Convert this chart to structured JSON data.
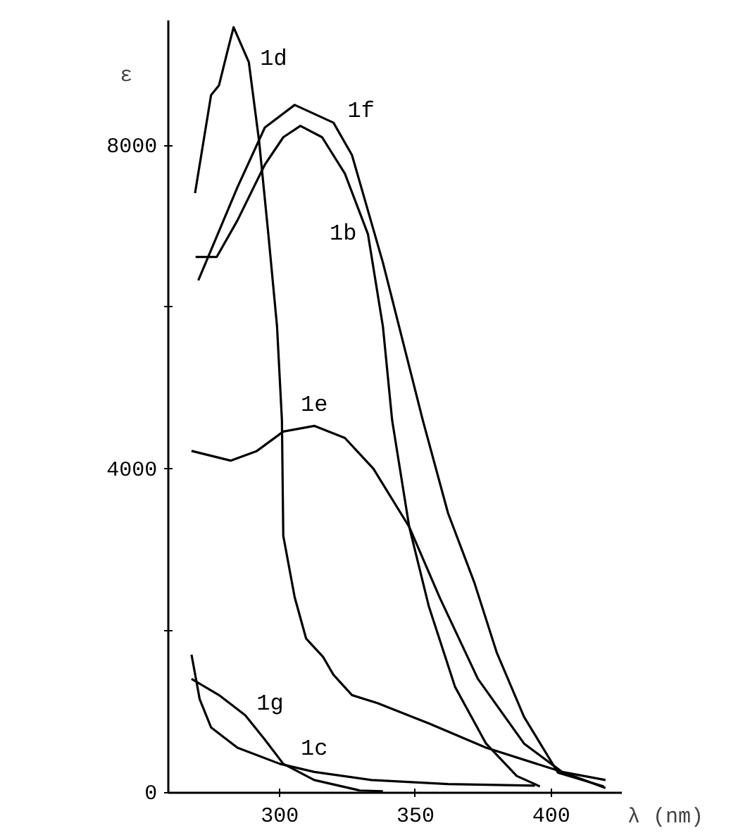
{
  "chart_data": {
    "type": "line",
    "xlabel": "λ (nm)",
    "ylabel": "ε",
    "xlim": [
      259,
      426
    ],
    "ylim": [
      0,
      9550
    ],
    "xticks": [
      300,
      350,
      400
    ],
    "yticks": [
      0,
      {
        "value": 2000,
        "label": null
      },
      4000,
      {
        "value": 6000,
        "label": null
      },
      8000
    ],
    "grid": false,
    "legend": false,
    "marker": "none",
    "line_style": "solid",
    "series": [
      {
        "name": "1b",
        "color": "#000000",
        "x": [
          269,
          276.8,
          284.4,
          294.5,
          301.3,
          307.6,
          315.6,
          324,
          332.5,
          338,
          341.4,
          347.7,
          354.9,
          364.6,
          376,
          387.3,
          395.8
        ],
        "values": [
          6620,
          6620,
          7070,
          7760,
          8100,
          8240,
          8100,
          7650,
          6900,
          5760,
          4600,
          3280,
          2300,
          1300,
          600,
          200,
          70
        ]
      },
      {
        "name": "1c",
        "color": "#000000",
        "x": [
          267.5,
          270.5,
          274.7,
          284.4,
          300,
          312.7,
          333.8,
          362,
          394
        ],
        "values": [
          1700,
          1150,
          800,
          550,
          350,
          250,
          150,
          100,
          80
        ]
      },
      {
        "name": "1d",
        "color": "#000000",
        "x": [
          268.8,
          274.7,
          277.6,
          281,
          283,
          288.6,
          292.4,
          295.8,
          299,
          300.8,
          301.3,
          305.5,
          309.7,
          316,
          319.8,
          326.6,
          336,
          354.9,
          376,
          404,
          420
        ],
        "values": [
          7410,
          8620,
          8740,
          9200,
          9460,
          9030,
          8050,
          6900,
          5760,
          4600,
          3170,
          2410,
          1900,
          1670,
          1450,
          1200,
          1100,
          850,
          550,
          250,
          150
        ]
      },
      {
        "name": "1e",
        "color": "#000000",
        "x": [
          267.5,
          281.9,
          291.6,
          301.3,
          312.7,
          324,
          334.5,
          347.7,
          359,
          373,
          390,
          404,
          420
        ],
        "values": [
          4220,
          4100,
          4220,
          4460,
          4530,
          4380,
          4000,
          3280,
          2400,
          1400,
          600,
          250,
          50
        ]
      },
      {
        "name": "1f",
        "color": "#000000",
        "x": [
          270,
          284.4,
          294.5,
          305.5,
          319.8,
          326.6,
          338,
          352.7,
          362,
          371.7,
          380,
          390,
          402.5,
          419.4
        ],
        "values": [
          6330,
          7480,
          8220,
          8500,
          8280,
          7880,
          6550,
          4600,
          3450,
          2590,
          1720,
          930,
          240,
          70
        ]
      },
      {
        "name": "1g",
        "color": "#000000",
        "x": [
          267.5,
          277.6,
          287.3,
          294.5,
          301.3,
          312.7,
          329.5,
          338
        ],
        "values": [
          1400,
          1200,
          950,
          650,
          350,
          150,
          20,
          10
        ]
      }
    ]
  }
}
